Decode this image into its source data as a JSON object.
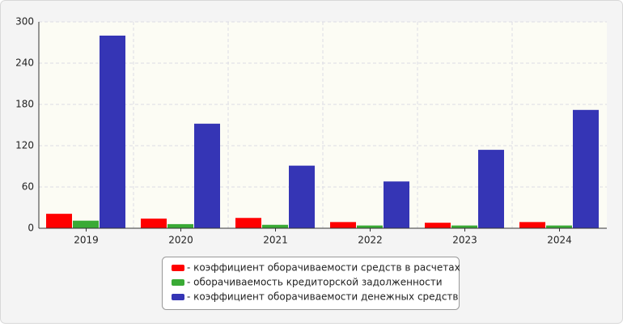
{
  "chart_data": {
    "type": "bar",
    "categories": [
      "2019",
      "2020",
      "2021",
      "2022",
      "2023",
      "2024"
    ],
    "series": [
      {
        "name": "- коэффициент оборачиваемости средств в расчетах",
        "color": "#ff0000",
        "values": [
          21,
          14,
          15,
          9,
          8,
          9
        ]
      },
      {
        "name": "- оборачиваемость кредиторской задолженности",
        "color": "#3aaa35",
        "values": [
          11,
          6,
          5,
          4,
          4,
          4
        ]
      },
      {
        "name": "- коэффициент оборачиваемости денежных средств",
        "color": "#3535b5",
        "values": [
          280,
          152,
          91,
          68,
          114,
          172
        ]
      }
    ],
    "ylim": [
      0,
      300
    ],
    "yticks": [
      0,
      60,
      120,
      180,
      240,
      300
    ],
    "grid": true,
    "legend": "bottom"
  }
}
